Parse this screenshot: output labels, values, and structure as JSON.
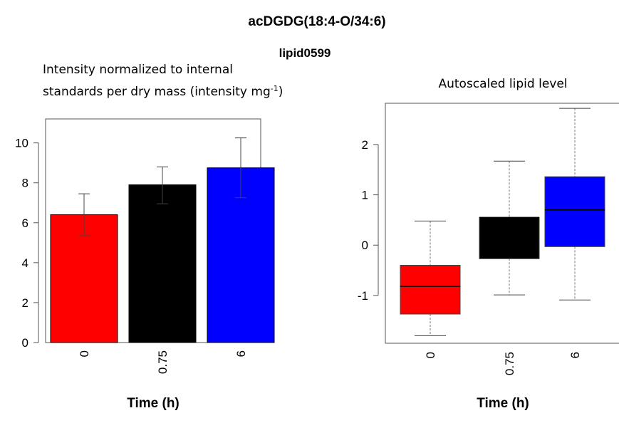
{
  "figure": {
    "title": "acDGDG(18:4-O/34:6)",
    "subtitle": "lipid0599"
  },
  "chart_data": [
    {
      "type": "bar",
      "ylabel_line1": "Intensity normalized to internal",
      "ylabel_line2_pre": "standards per dry mass (intensity mg",
      "ylabel_sup": "-1",
      "ylabel_line2_post": ")",
      "xlabel": "Time (h)",
      "categories": [
        "0",
        "0.75",
        "6"
      ],
      "values": [
        6.4,
        7.9,
        8.75
      ],
      "error_low": [
        5.35,
        6.95,
        7.25
      ],
      "error_high": [
        7.45,
        8.8,
        10.25
      ],
      "colors": [
        "#ff0000",
        "#000000",
        "#0000ff"
      ],
      "ylim": [
        0,
        11.2
      ],
      "yticks": [
        0,
        2,
        4,
        6,
        8,
        10
      ]
    },
    {
      "type": "box",
      "ylabel": "Autoscaled lipid level",
      "xlabel": "Time (h)",
      "categories": [
        "0",
        "0.75",
        "6"
      ],
      "boxes": [
        {
          "whisker_low": -1.8,
          "q1": -1.37,
          "median": -0.82,
          "q3": -0.4,
          "whisker_high": 0.48
        },
        {
          "whisker_low": -0.99,
          "q1": -0.27,
          "median": 0.55,
          "q3": 0.55,
          "whisker_high": 1.67
        },
        {
          "whisker_low": -1.09,
          "q1": -0.03,
          "median": 0.7,
          "q3": 1.36,
          "whisker_high": 2.72
        }
      ],
      "colors": [
        "#ff0000",
        "#000000",
        "#0000ff"
      ],
      "ylim": [
        -1.95,
        2.82
      ],
      "yticks": [
        -1,
        0,
        1,
        2
      ],
      "ytick_labels": [
        "-1",
        "0",
        "1",
        "2"
      ]
    }
  ]
}
